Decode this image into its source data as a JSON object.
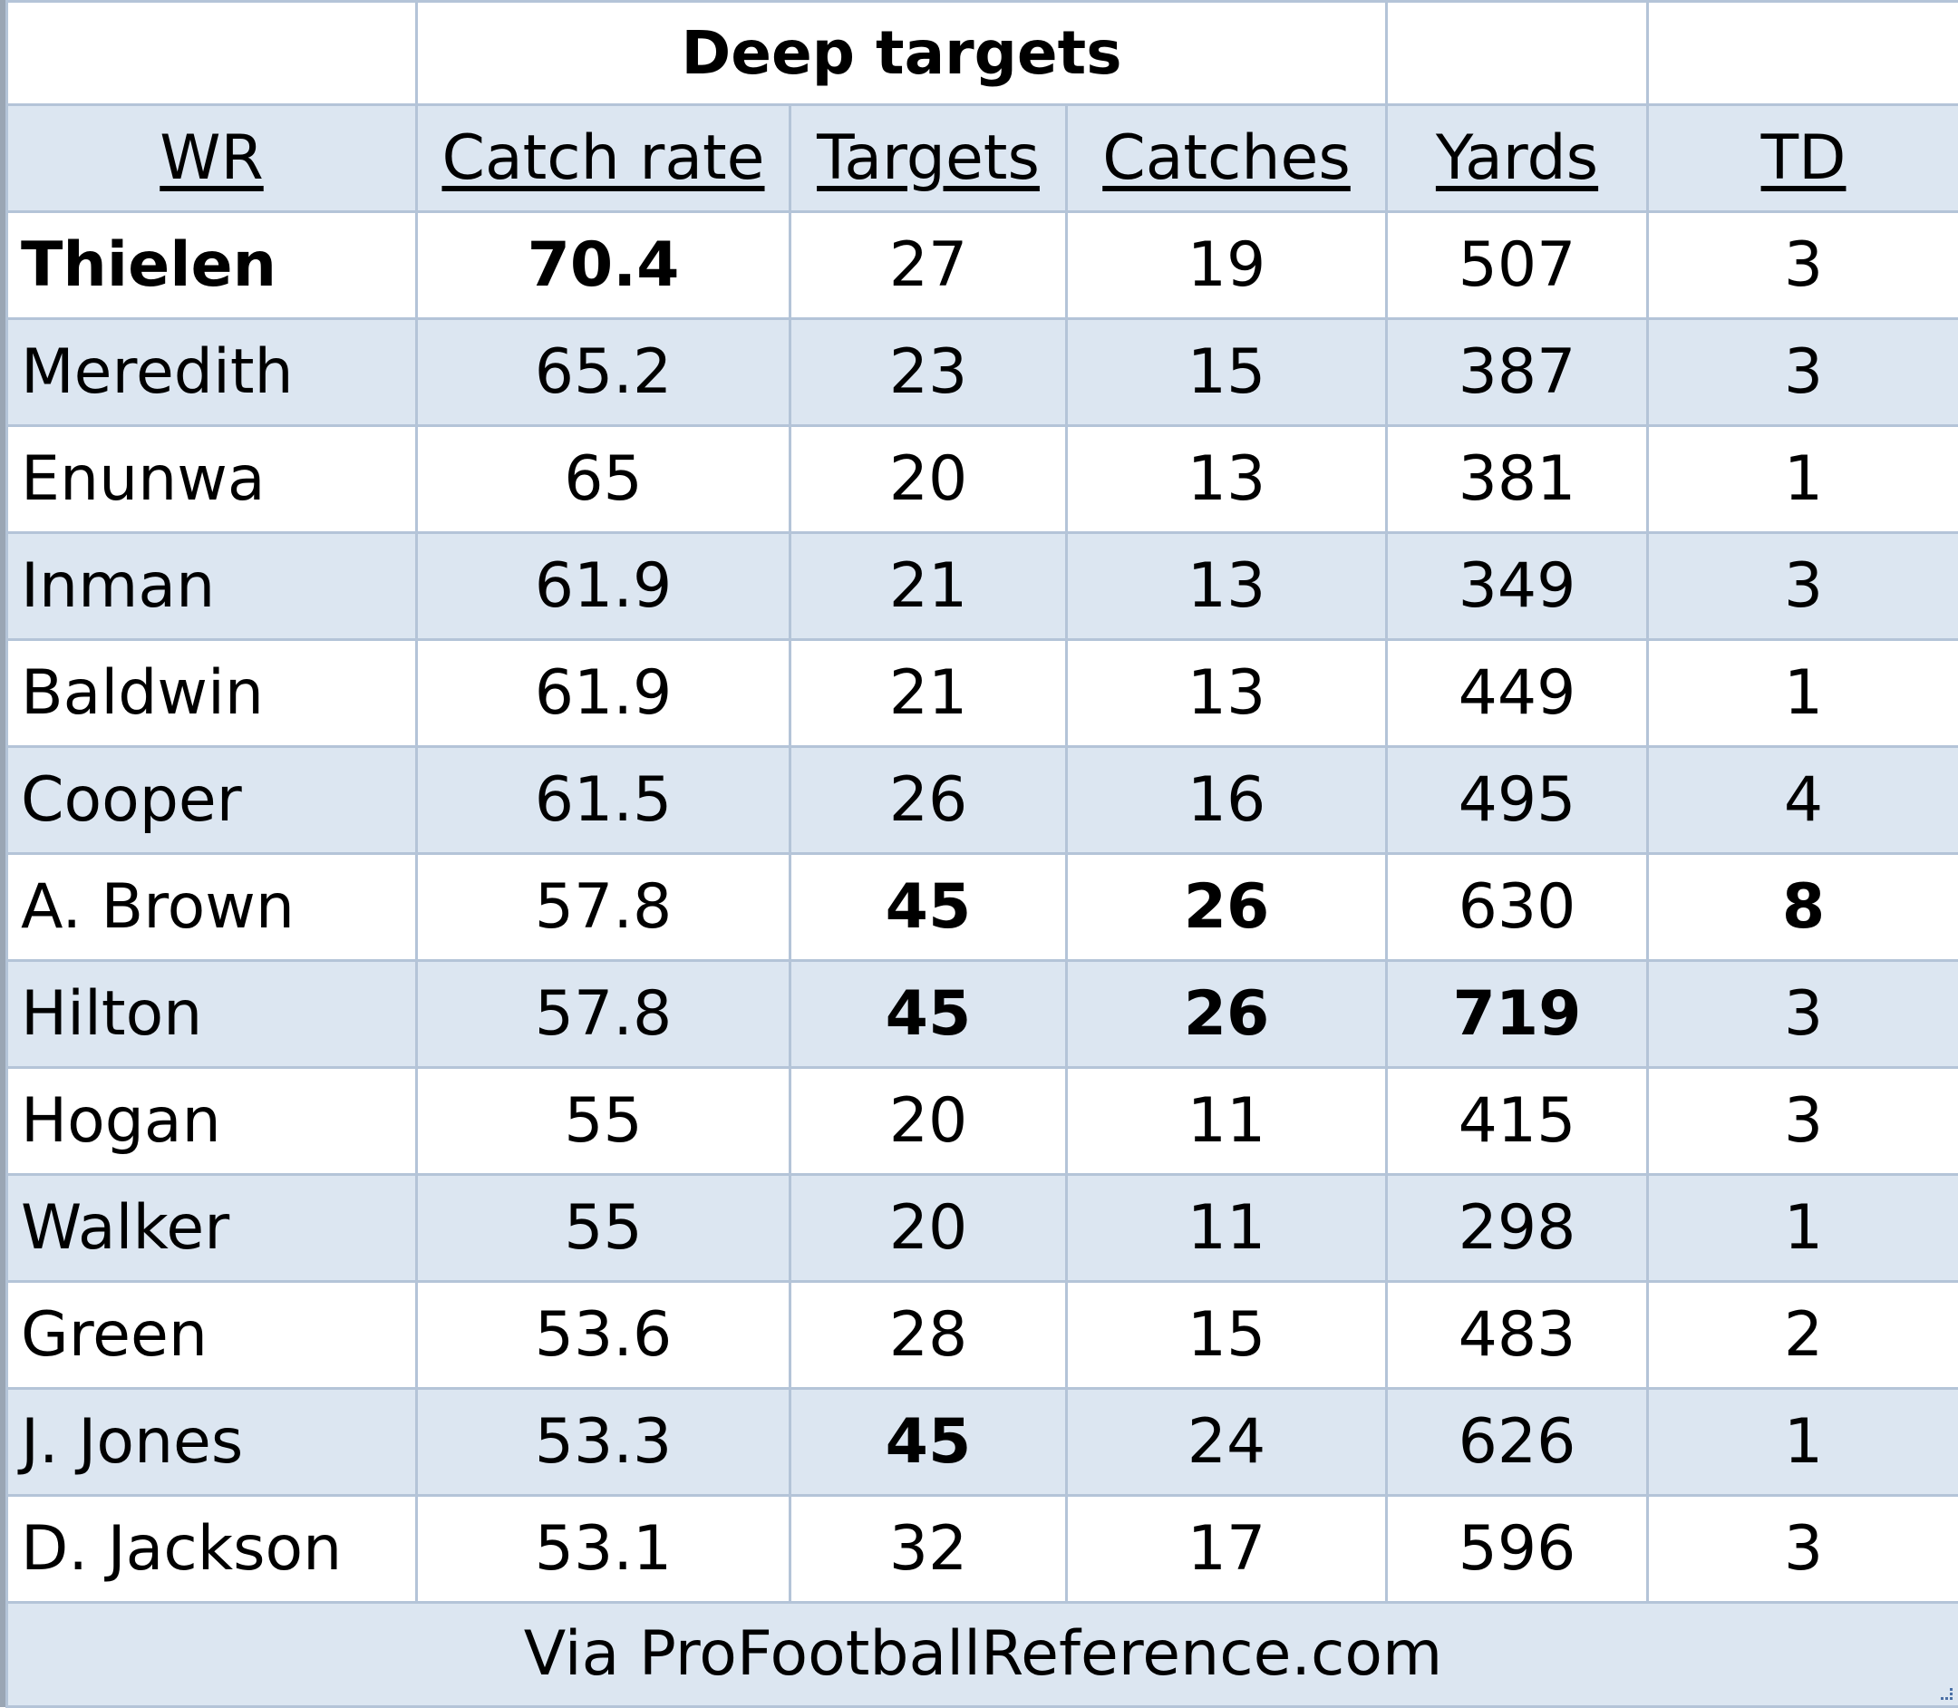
{
  "table": {
    "title": "Deep targets",
    "headers": [
      "WR",
      "Catch rate",
      "Targets",
      "Catches",
      "Yards",
      "TD"
    ],
    "rows": [
      {
        "cells": [
          "Thielen",
          "70.4",
          "27",
          "19",
          "507",
          "3"
        ],
        "bold": [
          0,
          1
        ]
      },
      {
        "cells": [
          "Meredith",
          "65.2",
          "23",
          "15",
          "387",
          "3"
        ],
        "bold": []
      },
      {
        "cells": [
          "Enunwa",
          "65",
          "20",
          "13",
          "381",
          "1"
        ],
        "bold": []
      },
      {
        "cells": [
          "Inman",
          "61.9",
          "21",
          "13",
          "349",
          "3"
        ],
        "bold": []
      },
      {
        "cells": [
          "Baldwin",
          "61.9",
          "21",
          "13",
          "449",
          "1"
        ],
        "bold": []
      },
      {
        "cells": [
          "Cooper",
          "61.5",
          "26",
          "16",
          "495",
          "4"
        ],
        "bold": []
      },
      {
        "cells": [
          "A. Brown",
          "57.8",
          "45",
          "26",
          "630",
          "8"
        ],
        "bold": [
          2,
          3,
          5
        ]
      },
      {
        "cells": [
          "Hilton",
          "57.8",
          "45",
          "26",
          "719",
          "3"
        ],
        "bold": [
          2,
          3,
          4
        ]
      },
      {
        "cells": [
          "Hogan",
          "55",
          "20",
          "11",
          "415",
          "3"
        ],
        "bold": []
      },
      {
        "cells": [
          "Walker",
          "55",
          "20",
          "11",
          "298",
          "1"
        ],
        "bold": []
      },
      {
        "cells": [
          "Green",
          "53.6",
          "28",
          "15",
          "483",
          "2"
        ],
        "bold": []
      },
      {
        "cells": [
          "J. Jones",
          "53.3",
          "45",
          "24",
          "626",
          "1"
        ],
        "bold": [
          2
        ]
      },
      {
        "cells": [
          "D. Jackson",
          "53.1",
          "32",
          "17",
          "596",
          "3"
        ],
        "bold": []
      }
    ],
    "source": "Via ProFootballReference.com"
  },
  "colors": {
    "band": "#dce6f1",
    "gridline": "#b4c4d8",
    "frame": "#9aa6b4"
  }
}
